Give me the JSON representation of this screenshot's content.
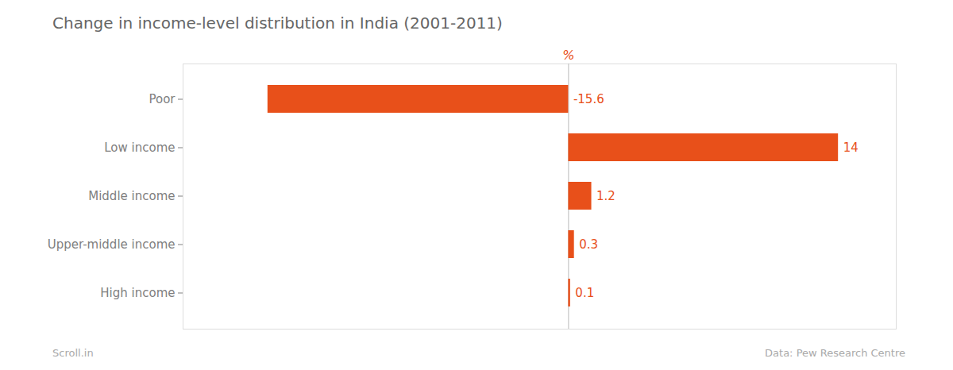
{
  "chart_data": {
    "type": "bar",
    "orientation": "horizontal",
    "title": "Change in income-level distribution in India (2001-2011)",
    "categories": [
      "Poor",
      "Low income",
      "Middle income",
      "Upper-middle income",
      "High income"
    ],
    "values": [
      -15.6,
      14,
      1.2,
      0.3,
      0.1
    ],
    "color": "#E8501A",
    "xlim": [
      -20,
      17
    ],
    "xticks": [],
    "tick_labels": "y",
    "grid": false,
    "data_labels": true,
    "annotations": [
      {
        "text": "%",
        "x": 0
      }
    ],
    "footnotes": [
      "Scroll.in",
      "Data: Pew Research Centre"
    ]
  }
}
